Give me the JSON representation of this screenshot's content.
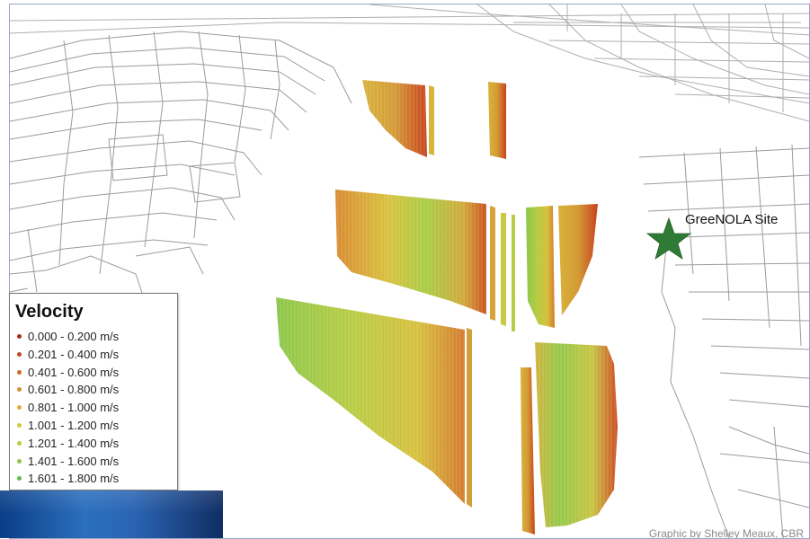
{
  "legend": {
    "title": "Velocity",
    "items": [
      {
        "label": "0.000 - 0.200 m/s",
        "color": "#b02a1a"
      },
      {
        "label": "0.201 - 0.400 m/s",
        "color": "#c4471f"
      },
      {
        "label": "0.401 - 0.600 m/s",
        "color": "#cf6a2b"
      },
      {
        "label": "0.601 - 0.800 m/s",
        "color": "#d68f35"
      },
      {
        "label": "0.801 - 1.000 m/s",
        "color": "#dcae3c"
      },
      {
        "label": "1.001 - 1.200 m/s",
        "color": "#d6c640"
      },
      {
        "label": "1.201 - 1.400 m/s",
        "color": "#b9cc44"
      },
      {
        "label": "1.401 - 1.600 m/s",
        "color": "#8fc64a"
      },
      {
        "label": "1.601 - 1.800 m/s",
        "color": "#5cbc4c"
      }
    ]
  },
  "site": {
    "label": "GreeNOLA Site",
    "icon": "star-icon",
    "color": "#2f7a34"
  },
  "credit": "Graphic by Shelley Meaux, CBR",
  "colors": {
    "frame_border": "#9aa6c8",
    "street_lines": "#888888",
    "slow": "#c4471f",
    "medium": "#dcae3c",
    "fast": "#7cc24a"
  }
}
